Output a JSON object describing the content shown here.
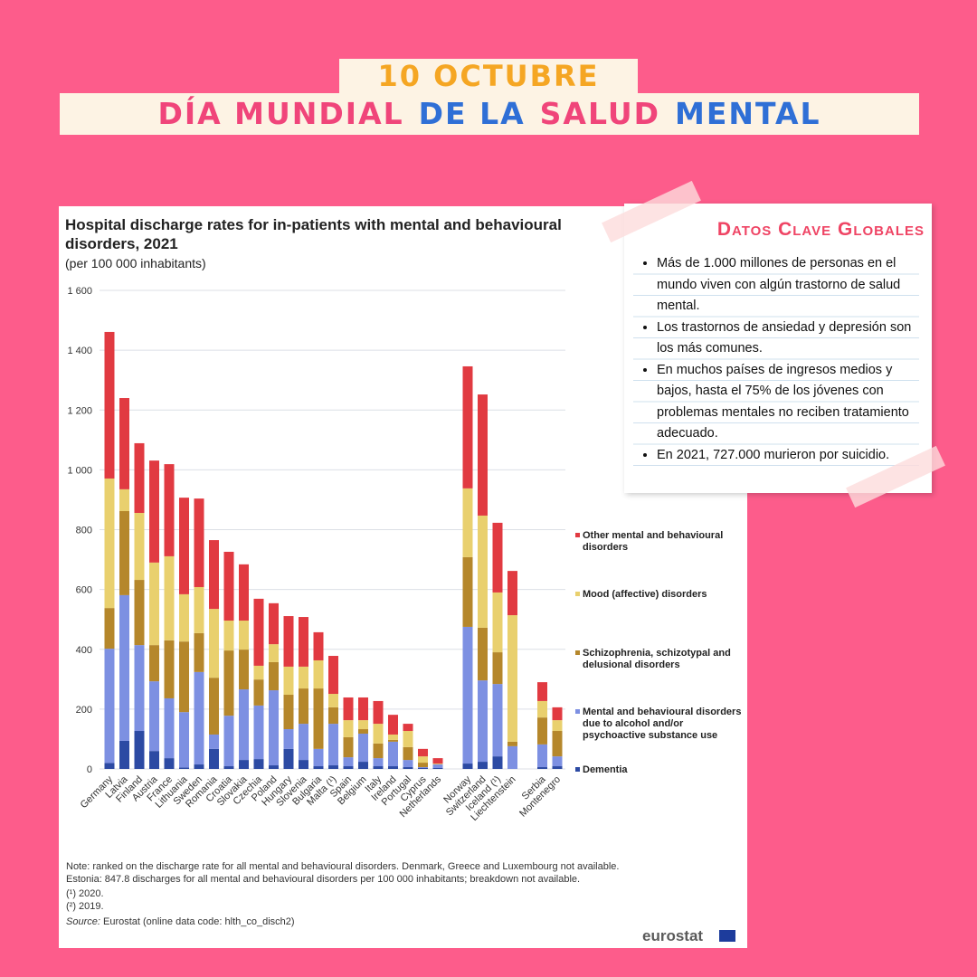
{
  "header": {
    "line1": "10 OCTUBRE",
    "line2": [
      {
        "text": "DÍA MUNDIAL",
        "color": "#f0457a"
      },
      {
        "text": "DE LA",
        "color": "#2f6fd6"
      },
      {
        "text": "SALUD",
        "color": "#f0457a"
      },
      {
        "text": "MENTAL",
        "color": "#2f6fd6"
      }
    ]
  },
  "card": {
    "title": "Datos Clave Globales",
    "items": [
      "Más de 1.000 millones de personas en el mundo viven con algún trastorno de salud mental.",
      "Los trastornos de ansiedad y depresión son los más comunes.",
      "En muchos países de ingresos medios y bajos, hasta el 75% de los jóvenes con problemas mentales no reciben tratamiento adecuado.",
      "En 2021, 727.000 murieron por suicidio."
    ]
  },
  "chart_data": {
    "type": "stacked_bar",
    "title": "Hospital discharge rates for in-patients with mental and behavioural disorders, 2021",
    "subtitle": "(per 100 000 inhabitants)",
    "categories": [
      "Germany",
      "Latvia",
      "Finland",
      "Austria",
      "France",
      "Lithuania",
      "Sweden",
      "Romania",
      "Croatia",
      "Slovakia",
      "Czechia",
      "Poland",
      "Hungary",
      "Slovenia",
      "Bulgaria",
      "Malta (¹)",
      "Spain",
      "Belgium",
      "Italy",
      "Ireland",
      "Portugal",
      "Cyprus",
      "Netherlands",
      null,
      "Norway",
      "Switzerland",
      "Iceland (¹)",
      "Liechtenstein",
      null,
      "Serbia",
      "Montenegro"
    ],
    "series": [
      {
        "name": "Dementia",
        "color": "#2c4aa3",
        "values": [
          20,
          94,
          127,
          60,
          36,
          5,
          15,
          67,
          9,
          30,
          33,
          12,
          67,
          30,
          9,
          12,
          9,
          24,
          9,
          9,
          6,
          3,
          3,
          null,
          18,
          24,
          42,
          0,
          null,
          6,
          9
        ]
      },
      {
        "name": "Mental and behavioural disorders due to alcohol and/or psychoactive substance use",
        "color": "#7d90e2",
        "values": [
          382,
          487,
          287,
          233,
          200,
          185,
          309,
          48,
          169,
          236,
          179,
          251,
          66,
          121,
          58,
          139,
          30,
          94,
          27,
          82,
          24,
          3,
          12,
          null,
          457,
          272,
          242,
          76,
          null,
          76,
          33
        ]
      },
      {
        "name": "Schizophrenia, schizotypal and delusional disorders",
        "color": "#b5872b",
        "values": [
          136,
          281,
          218,
          121,
          194,
          236,
          130,
          190,
          218,
          133,
          87,
          94,
          115,
          118,
          202,
          55,
          67,
          15,
          49,
          6,
          43,
          15,
          1,
          null,
          233,
          176,
          106,
          15,
          null,
          90,
          85
        ]
      },
      {
        "name": "Mood (affective) disorders",
        "color": "#e9d06e",
        "values": [
          433,
          73,
          224,
          276,
          281,
          158,
          154,
          230,
          100,
          97,
          46,
          60,
          94,
          73,
          94,
          45,
          57,
          30,
          66,
          18,
          54,
          21,
          2,
          null,
          230,
          375,
          200,
          423,
          null,
          55,
          36
        ]
      },
      {
        "name": "Other mental and behavioural disorders",
        "color": "#e13a41",
        "values": [
          490,
          305,
          233,
          341,
          308,
          323,
          296,
          230,
          230,
          188,
          224,
          137,
          169,
          166,
          94,
          127,
          76,
          76,
          76,
          66,
          24,
          25,
          18,
          null,
          408,
          405,
          233,
          148,
          null,
          63,
          43
        ]
      }
    ],
    "ylim": [
      0,
      1600
    ],
    "yticks": [
      0,
      200,
      400,
      600,
      800,
      {
        "value": 1000,
        "label": "1 000"
      },
      {
        "value": 1200,
        "label": "1 200"
      },
      {
        "value": 1400,
        "label": "1 400"
      },
      {
        "value": 1600,
        "label": "1 600"
      }
    ],
    "grid": true,
    "legend": "right",
    "notes": [
      "Note: ranked on the discharge rate for all mental and behavioural disorders. Denmark, Greece and Luxembourg not available.",
      "Estonia: 847.8 discharges for all mental and behavioural disorders per 100 000 inhabitants; breakdown not available.",
      "(¹) 2020.",
      "(²) 2019."
    ],
    "source_label": "Source:",
    "source": "Eurostat (online data code: hlth_co_disch2)",
    "logo": "eurostat"
  }
}
